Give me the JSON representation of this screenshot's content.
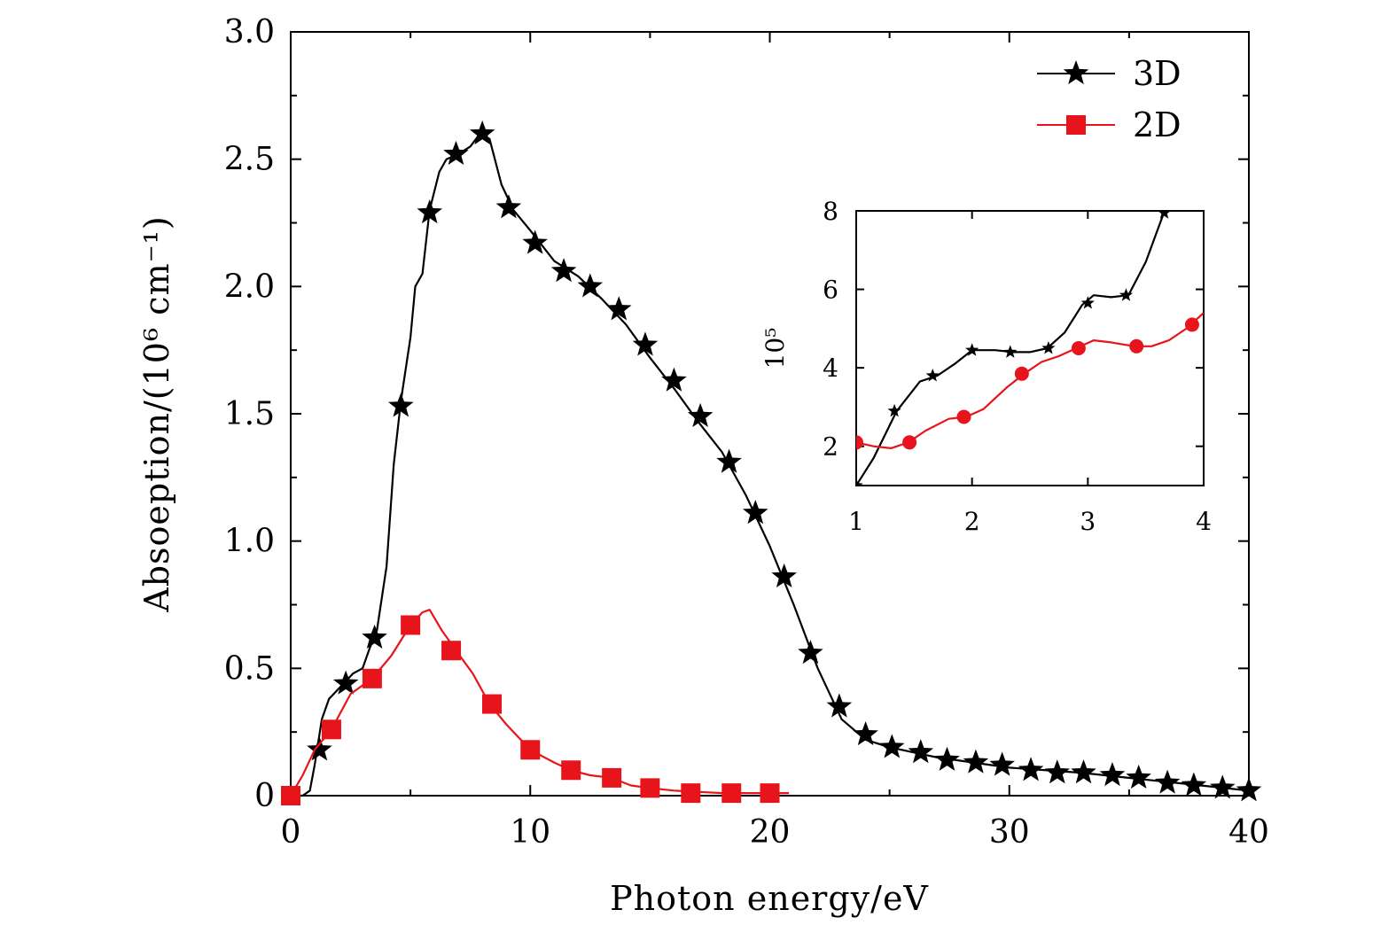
{
  "chart_data": [
    {
      "type": "line",
      "xlabel": "Photon energy/eV",
      "ylabel": "Absoeption/(10⁶ cm⁻¹)",
      "xlim": [
        0,
        40
      ],
      "ylim": [
        0,
        3.0
      ],
      "xticks": [
        "0",
        "10",
        "20",
        "30",
        "40"
      ],
      "yticks": [
        "0",
        "0.5",
        "1.0",
        "1.5",
        "2.0",
        "2.5",
        "3.0"
      ],
      "legend_position": "top-right",
      "series": [
        {
          "name": "3D",
          "color": "#000000",
          "marker": "star",
          "curve": [
            [
              0,
              0
            ],
            [
              0.5,
              0
            ],
            [
              0.8,
              0.02
            ],
            [
              1.0,
              0.12
            ],
            [
              1.3,
              0.3
            ],
            [
              1.6,
              0.38
            ],
            [
              2.0,
              0.42
            ],
            [
              2.6,
              0.48
            ],
            [
              3.0,
              0.5
            ],
            [
              3.3,
              0.58
            ],
            [
              3.6,
              0.65
            ],
            [
              4.0,
              0.9
            ],
            [
              4.3,
              1.3
            ],
            [
              4.6,
              1.55
            ],
            [
              5.0,
              1.8
            ],
            [
              5.2,
              2.0
            ],
            [
              5.5,
              2.05
            ],
            [
              5.8,
              2.3
            ],
            [
              6.2,
              2.45
            ],
            [
              6.5,
              2.5
            ],
            [
              7.0,
              2.52
            ],
            [
              7.5,
              2.55
            ],
            [
              7.9,
              2.6
            ],
            [
              8.3,
              2.58
            ],
            [
              8.8,
              2.4
            ],
            [
              9.3,
              2.3
            ],
            [
              10,
              2.22
            ],
            [
              11,
              2.1
            ],
            [
              12,
              2.04
            ],
            [
              13,
              1.95
            ],
            [
              14,
              1.85
            ],
            [
              15,
              1.72
            ],
            [
              16,
              1.6
            ],
            [
              17,
              1.47
            ],
            [
              18,
              1.35
            ],
            [
              19,
              1.18
            ],
            [
              20,
              0.98
            ],
            [
              21,
              0.75
            ],
            [
              22,
              0.5
            ],
            [
              23,
              0.3
            ],
            [
              24,
              0.22
            ],
            [
              25,
              0.19
            ],
            [
              27,
              0.15
            ],
            [
              30,
              0.11
            ],
            [
              33,
              0.09
            ],
            [
              36,
              0.06
            ],
            [
              38,
              0.04
            ],
            [
              40,
              0.02
            ]
          ],
          "markers": [
            [
              1.2,
              0.18
            ],
            [
              2.3,
              0.44
            ],
            [
              3.5,
              0.62
            ],
            [
              4.6,
              1.53
            ],
            [
              5.8,
              2.29
            ],
            [
              6.9,
              2.52
            ],
            [
              8.0,
              2.6
            ],
            [
              9.1,
              2.31
            ],
            [
              10.2,
              2.17
            ],
            [
              11.4,
              2.06
            ],
            [
              12.5,
              2.0
            ],
            [
              13.7,
              1.91
            ],
            [
              14.8,
              1.77
            ],
            [
              16.0,
              1.63
            ],
            [
              17.1,
              1.49
            ],
            [
              18.3,
              1.31
            ],
            [
              19.4,
              1.11
            ],
            [
              20.6,
              0.86
            ],
            [
              21.7,
              0.56
            ],
            [
              22.9,
              0.35
            ],
            [
              24.0,
              0.24
            ],
            [
              25.1,
              0.19
            ],
            [
              26.3,
              0.17
            ],
            [
              27.4,
              0.14
            ],
            [
              28.6,
              0.13
            ],
            [
              29.7,
              0.12
            ],
            [
              30.9,
              0.1
            ],
            [
              32.0,
              0.09
            ],
            [
              33.1,
              0.09
            ],
            [
              34.3,
              0.08
            ],
            [
              35.4,
              0.07
            ],
            [
              36.6,
              0.05
            ],
            [
              37.7,
              0.04
            ],
            [
              38.9,
              0.03
            ],
            [
              40.0,
              0.02
            ]
          ]
        },
        {
          "name": "2D",
          "color": "#e8141b",
          "marker": "square",
          "curve": [
            [
              0,
              0
            ],
            [
              0.5,
              0.08
            ],
            [
              1.0,
              0.18
            ],
            [
              1.7,
              0.26
            ],
            [
              2.5,
              0.4
            ],
            [
              3.4,
              0.46
            ],
            [
              4.2,
              0.55
            ],
            [
              5.0,
              0.67
            ],
            [
              5.5,
              0.72
            ],
            [
              5.8,
              0.73
            ],
            [
              6.3,
              0.65
            ],
            [
              6.9,
              0.57
            ],
            [
              7.6,
              0.48
            ],
            [
              8.3,
              0.36
            ],
            [
              9.0,
              0.28
            ],
            [
              10.0,
              0.18
            ],
            [
              11.0,
              0.13
            ],
            [
              11.7,
              0.1
            ],
            [
              12.5,
              0.08
            ],
            [
              13.4,
              0.07
            ],
            [
              14.2,
              0.04
            ],
            [
              15.0,
              0.03
            ],
            [
              16.0,
              0.02
            ],
            [
              17.0,
              0.015
            ],
            [
              18.0,
              0.01
            ],
            [
              19.0,
              0.01
            ],
            [
              20.0,
              0.01
            ],
            [
              20.8,
              0.01
            ]
          ],
          "markers": [
            [
              0,
              0
            ],
            [
              1.7,
              0.26
            ],
            [
              3.4,
              0.46
            ],
            [
              5.0,
              0.67
            ],
            [
              6.7,
              0.57
            ],
            [
              8.4,
              0.36
            ],
            [
              10.0,
              0.18
            ],
            [
              11.7,
              0.1
            ],
            [
              13.4,
              0.07
            ],
            [
              15.0,
              0.03
            ],
            [
              16.7,
              0.01
            ],
            [
              18.4,
              0.01
            ],
            [
              20.0,
              0.01
            ]
          ]
        }
      ]
    },
    {
      "type": "line",
      "inset": true,
      "ylabel": "10⁵",
      "xlim": [
        1,
        4
      ],
      "ylim": [
        1,
        8
      ],
      "xticks": [
        "1",
        "2",
        "3",
        "4"
      ],
      "yticks": [
        "2",
        "4",
        "6",
        "8"
      ],
      "series": [
        {
          "color": "#000000",
          "marker": "star",
          "curve": [
            [
              1.0,
              1.0
            ],
            [
              1.15,
              1.7
            ],
            [
              1.35,
              2.9
            ],
            [
              1.55,
              3.65
            ],
            [
              1.7,
              3.8
            ],
            [
              1.85,
              4.1
            ],
            [
              2.0,
              4.45
            ],
            [
              2.2,
              4.45
            ],
            [
              2.35,
              4.4
            ],
            [
              2.5,
              4.4
            ],
            [
              2.65,
              4.5
            ],
            [
              2.8,
              4.9
            ],
            [
              2.95,
              5.6
            ],
            [
              3.05,
              5.85
            ],
            [
              3.2,
              5.8
            ],
            [
              3.35,
              5.85
            ],
            [
              3.5,
              6.7
            ],
            [
              3.65,
              7.9
            ]
          ],
          "markers": [
            [
              1.0,
              1.0
            ],
            [
              1.33,
              2.9
            ],
            [
              1.66,
              3.8
            ],
            [
              2.0,
              4.45
            ],
            [
              2.33,
              4.4
            ],
            [
              2.66,
              4.5
            ],
            [
              3.0,
              5.65
            ],
            [
              3.33,
              5.85
            ],
            [
              3.66,
              7.95
            ]
          ]
        },
        {
          "color": "#e8141b",
          "marker": "circle",
          "curve": [
            [
              1.0,
              2.1
            ],
            [
              1.15,
              2.0
            ],
            [
              1.3,
              1.95
            ],
            [
              1.45,
              2.1
            ],
            [
              1.6,
              2.4
            ],
            [
              1.8,
              2.7
            ],
            [
              1.95,
              2.75
            ],
            [
              2.1,
              2.95
            ],
            [
              2.3,
              3.5
            ],
            [
              2.45,
              3.85
            ],
            [
              2.6,
              4.15
            ],
            [
              2.75,
              4.3
            ],
            [
              2.9,
              4.5
            ],
            [
              3.05,
              4.7
            ],
            [
              3.2,
              4.65
            ],
            [
              3.4,
              4.55
            ],
            [
              3.55,
              4.55
            ],
            [
              3.7,
              4.7
            ],
            [
              3.85,
              5.0
            ],
            [
              4.0,
              5.4
            ]
          ],
          "markers": [
            [
              1.0,
              2.1
            ],
            [
              1.46,
              2.1
            ],
            [
              1.93,
              2.75
            ],
            [
              2.43,
              3.85
            ],
            [
              2.92,
              4.5
            ],
            [
              3.42,
              4.55
            ],
            [
              3.9,
              5.1
            ]
          ]
        }
      ]
    }
  ]
}
